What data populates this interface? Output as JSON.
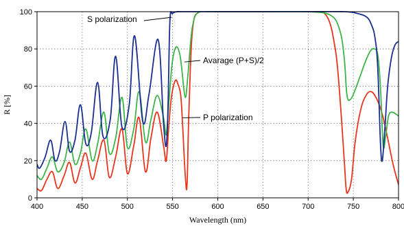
{
  "chart_data": {
    "type": "line",
    "title": "",
    "xlabel": "Wavelength (nm)",
    "ylabel": "R [%]",
    "xlim": [
      400,
      800
    ],
    "ylim": [
      0,
      100
    ],
    "xticks": [
      400,
      450,
      500,
      550,
      600,
      650,
      700,
      750,
      800
    ],
    "yticks": [
      0,
      20,
      40,
      60,
      80,
      100
    ],
    "grid": true,
    "annotations": [
      {
        "text": "S polarization",
        "series": "S polarization",
        "point": [
          549,
          97
        ]
      },
      {
        "text": "Avarage (P+S)/2",
        "series": "Avarage (P+S)/2",
        "point": [
          563,
          73
        ]
      },
      {
        "text": "P polarization",
        "series": "P polarization",
        "point": [
          561,
          43
        ]
      }
    ],
    "series": [
      {
        "name": "S polarization",
        "color": "#1a2e8f",
        "x": [
          400,
          403,
          409,
          415,
          420,
          425,
          431,
          436,
          442,
          448,
          454,
          460,
          467,
          473,
          481,
          487,
          494,
          502,
          508,
          517,
          524,
          534,
          540,
          543,
          545,
          547,
          550,
          555,
          560,
          600,
          650,
          700,
          740,
          755,
          765,
          770,
          774,
          777,
          780,
          782,
          785,
          788,
          792,
          796,
          800
        ],
        "y": [
          18,
          16,
          22,
          31,
          20,
          25,
          41,
          25,
          31,
          50,
          29,
          35,
          62,
          33,
          42,
          76,
          38,
          50,
          87,
          41,
          56,
          85,
          40,
          28,
          50,
          95,
          99,
          100,
          100,
          100,
          100,
          100,
          100,
          99,
          97,
          93,
          86,
          70,
          30,
          20,
          38,
          60,
          75,
          82,
          84
        ]
      },
      {
        "name": "Avarage (P+S)/2",
        "color": "#3db34a",
        "x": [
          400,
          405,
          411,
          417,
          423,
          430,
          436,
          442,
          448,
          454,
          461,
          467,
          474,
          480,
          487,
          494,
          500,
          507,
          513,
          520,
          526,
          533,
          540,
          543,
          546,
          549,
          552,
          555,
          558,
          560,
          564,
          567,
          572,
          580,
          600,
          650,
          700,
          725,
          735,
          740,
          743,
          747,
          752,
          758,
          764,
          769,
          773,
          777,
          780,
          783,
          786,
          789,
          793,
          800
        ],
        "y": [
          12,
          10,
          16,
          22,
          14,
          19,
          30,
          18,
          24,
          37,
          20,
          29,
          46,
          24,
          32,
          54,
          27,
          37,
          57,
          30,
          42,
          55,
          43,
          34,
          52,
          70,
          79,
          81,
          77,
          70,
          54,
          66,
          92,
          100,
          100,
          100,
          100,
          98,
          90,
          75,
          55,
          53,
          58,
          66,
          74,
          79,
          80,
          77,
          60,
          28,
          34,
          44,
          46,
          44
        ]
      },
      {
        "name": "P polarization",
        "color": "#e8341c",
        "x": [
          400,
          405,
          411,
          417,
          423,
          430,
          436,
          442,
          448,
          454,
          461,
          467,
          474,
          480,
          487,
          494,
          500,
          507,
          513,
          520,
          526,
          533,
          540,
          543,
          546,
          549,
          553,
          556,
          559,
          561,
          564,
          566,
          568,
          572,
          580,
          600,
          650,
          700,
          720,
          730,
          735,
          740,
          742,
          744,
          748,
          752,
          758,
          764,
          770,
          776,
          782,
          788,
          794,
          800
        ],
        "y": [
          5,
          4,
          10,
          14,
          5,
          12,
          19,
          8,
          16,
          24,
          10,
          20,
          31,
          11,
          22,
          37,
          13,
          28,
          43,
          14,
          32,
          46,
          28,
          20,
          40,
          55,
          63,
          61,
          55,
          40,
          12,
          7,
          45,
          90,
          100,
          100,
          100,
          100,
          98,
          80,
          55,
          20,
          5,
          3,
          10,
          30,
          47,
          55,
          57,
          53,
          45,
          32,
          18,
          7
        ]
      }
    ]
  }
}
